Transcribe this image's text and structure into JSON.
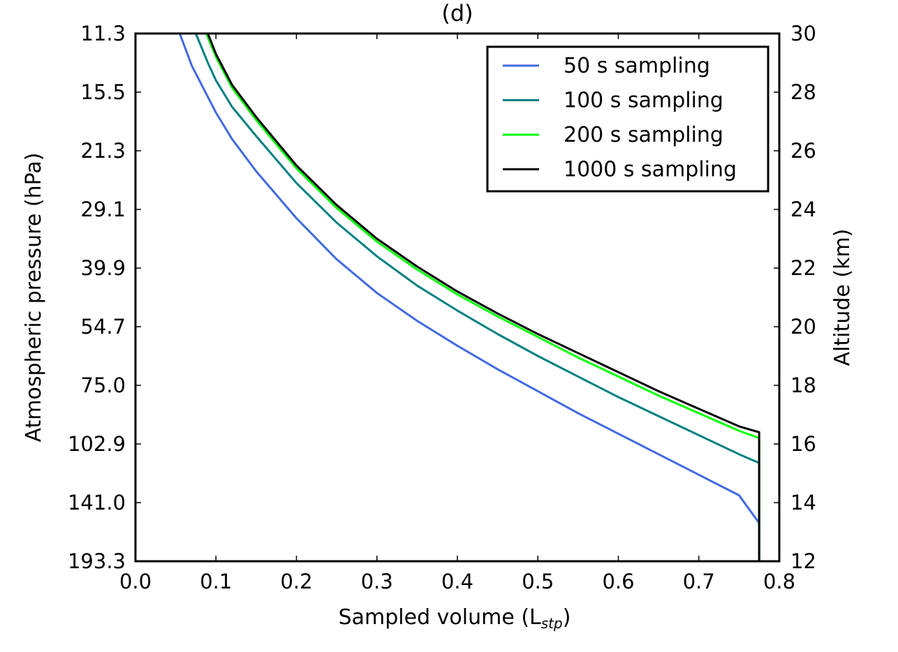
{
  "chart_data": {
    "type": "line",
    "title": "(d)",
    "xlabel": "Sampled volume (L",
    "xlabel_sub": "stp",
    "xlabel_suffix": ")",
    "ylabel_left": "Atmospheric pressure (hPa)",
    "ylabel_right": "Altitude (km)",
    "xlim": [
      0.0,
      0.8
    ],
    "ylim_altitude_km": [
      12,
      30
    ],
    "grid": false,
    "legend_position": "top-right",
    "x_ticks": [
      "0.0",
      "0.1",
      "0.2",
      "0.3",
      "0.4",
      "0.5",
      "0.6",
      "0.7",
      "0.8"
    ],
    "left_ticks": [
      "193.3",
      "141.0",
      "102.9",
      "75.0",
      "54.7",
      "39.9",
      "29.1",
      "21.3",
      "15.5",
      "11.3"
    ],
    "right_ticks": [
      "12",
      "14",
      "16",
      "18",
      "20",
      "22",
      "24",
      "26",
      "28",
      "30"
    ],
    "series": [
      {
        "name": "50 s sampling",
        "color": "#4169E1",
        "x": [
          0.055,
          0.07,
          0.085,
          0.1,
          0.12,
          0.15,
          0.2,
          0.25,
          0.3,
          0.35,
          0.4,
          0.45,
          0.5,
          0.55,
          0.6,
          0.65,
          0.7,
          0.75,
          0.775,
          0.775
        ],
        "altitude_km": [
          30.0,
          28.9,
          28.1,
          27.3,
          26.4,
          25.3,
          23.7,
          22.3,
          21.15,
          20.2,
          19.35,
          18.55,
          17.8,
          17.05,
          16.35,
          15.65,
          14.95,
          14.25,
          13.3,
          12.0
        ]
      },
      {
        "name": "100 s sampling",
        "color": "#008080",
        "x": [
          0.075,
          0.09,
          0.1,
          0.12,
          0.15,
          0.2,
          0.25,
          0.3,
          0.35,
          0.4,
          0.45,
          0.5,
          0.55,
          0.6,
          0.65,
          0.7,
          0.75,
          0.775,
          0.775
        ],
        "altitude_km": [
          30.0,
          29.0,
          28.4,
          27.5,
          26.5,
          24.9,
          23.55,
          22.4,
          21.4,
          20.55,
          19.75,
          19.0,
          18.3,
          17.6,
          16.95,
          16.3,
          15.65,
          15.35,
          12.0
        ]
      },
      {
        "name": "200 s sampling",
        "color": "#00FF00",
        "x": [
          0.088,
          0.1,
          0.12,
          0.15,
          0.2,
          0.25,
          0.3,
          0.35,
          0.4,
          0.45,
          0.5,
          0.55,
          0.6,
          0.65,
          0.7,
          0.75,
          0.775,
          0.775
        ],
        "altitude_km": [
          30.0,
          29.2,
          28.15,
          27.05,
          25.4,
          24.05,
          22.9,
          21.95,
          21.1,
          20.35,
          19.65,
          18.95,
          18.3,
          17.65,
          17.05,
          16.45,
          16.2,
          12.0
        ]
      },
      {
        "name": "1000 s sampling",
        "color": "#000000",
        "x": [
          0.09,
          0.1,
          0.12,
          0.15,
          0.2,
          0.25,
          0.3,
          0.35,
          0.4,
          0.45,
          0.5,
          0.55,
          0.6,
          0.65,
          0.7,
          0.75,
          0.775,
          0.775
        ],
        "altitude_km": [
          30.0,
          29.3,
          28.25,
          27.15,
          25.5,
          24.15,
          23.0,
          22.05,
          21.2,
          20.45,
          19.75,
          19.1,
          18.45,
          17.8,
          17.2,
          16.6,
          16.4,
          12.0
        ]
      }
    ]
  }
}
